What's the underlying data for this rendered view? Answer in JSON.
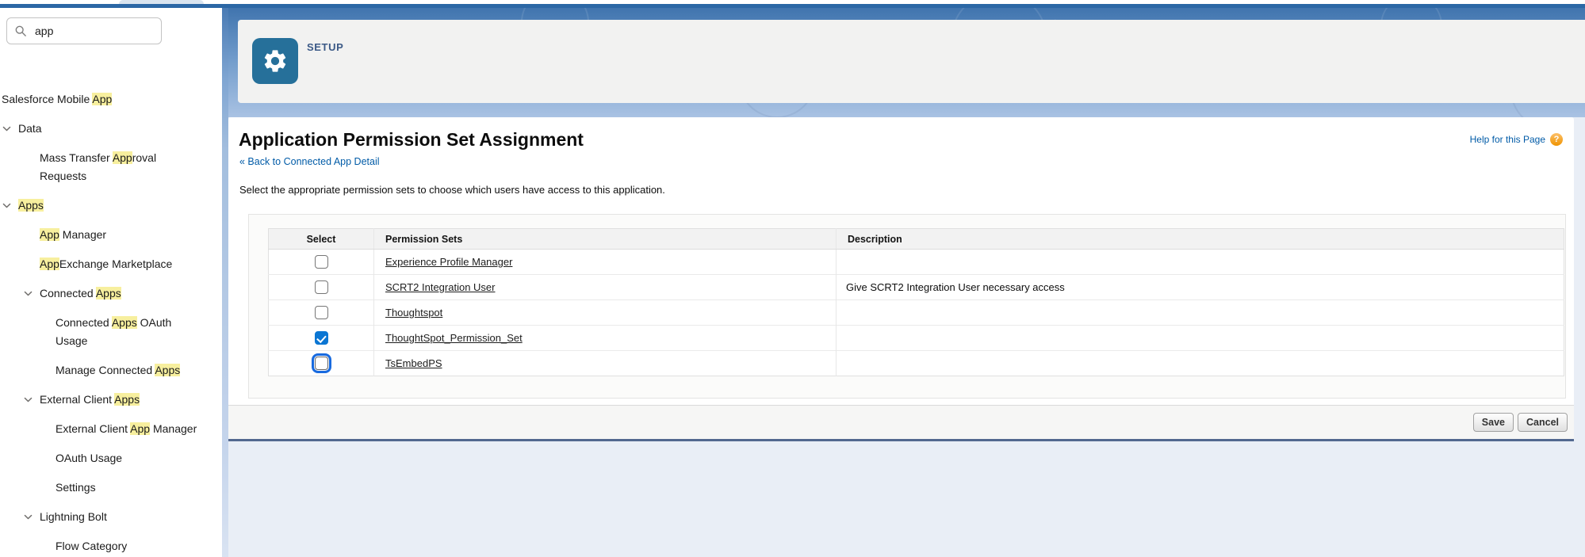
{
  "sidebar": {
    "search": {
      "value": "app",
      "icon": "search-icon"
    },
    "items": [
      {
        "id": "salesforce-mobile-app",
        "level": 0,
        "chevron": false,
        "lines": [
          [
            {
              "t": "Salesforce Mobile "
            },
            {
              "t": "App",
              "h": true
            }
          ]
        ]
      },
      {
        "id": "data",
        "level": 0,
        "chevron": true,
        "lines": [
          [
            {
              "t": "Data"
            }
          ]
        ]
      },
      {
        "id": "mass-transfer-approval-requests",
        "level": 1,
        "chevron": false,
        "lines": [
          [
            {
              "t": "Mass Transfer "
            },
            {
              "t": "App",
              "h": true
            },
            {
              "t": "roval"
            }
          ],
          [
            {
              "t": "Requests"
            }
          ]
        ]
      },
      {
        "id": "apps",
        "level": 0,
        "chevron": true,
        "lines": [
          [
            {
              "t": "Apps",
              "h": true
            }
          ]
        ]
      },
      {
        "id": "app-manager",
        "level": 1,
        "chevron": false,
        "lines": [
          [
            {
              "t": "App",
              "h": true
            },
            {
              "t": " Manager"
            }
          ]
        ]
      },
      {
        "id": "appexchange-marketplace",
        "level": 1,
        "chevron": false,
        "lines": [
          [
            {
              "t": "App",
              "h": true
            },
            {
              "t": "Exchange Marketplace"
            }
          ]
        ]
      },
      {
        "id": "connected-apps",
        "level": 1,
        "chevron": true,
        "lines": [
          [
            {
              "t": "Connected "
            },
            {
              "t": "Apps",
              "h": true
            }
          ]
        ]
      },
      {
        "id": "connected-apps-oauth-usage",
        "level": 2,
        "chevron": false,
        "lines": [
          [
            {
              "t": "Connected "
            },
            {
              "t": "Apps",
              "h": true
            },
            {
              "t": " OAuth"
            }
          ],
          [
            {
              "t": "Usage"
            }
          ]
        ]
      },
      {
        "id": "manage-connected-apps",
        "level": 2,
        "chevron": false,
        "lines": [
          [
            {
              "t": "Manage Connected "
            },
            {
              "t": "Apps",
              "h": true
            }
          ]
        ]
      },
      {
        "id": "external-client-apps",
        "level": 1,
        "chevron": true,
        "lines": [
          [
            {
              "t": "External Client "
            },
            {
              "t": "Apps",
              "h": true
            }
          ]
        ]
      },
      {
        "id": "external-client-app-manager",
        "level": 2,
        "chevron": false,
        "lines": [
          [
            {
              "t": "External Client "
            },
            {
              "t": "App",
              "h": true
            },
            {
              "t": " Manager"
            }
          ]
        ]
      },
      {
        "id": "oauth-usage",
        "level": 2,
        "chevron": false,
        "lines": [
          [
            {
              "t": "OAuth Usage"
            }
          ]
        ]
      },
      {
        "id": "settings",
        "level": 2,
        "chevron": false,
        "lines": [
          [
            {
              "t": "Settings"
            }
          ]
        ]
      },
      {
        "id": "lightning-bolt",
        "level": 1,
        "chevron": true,
        "lines": [
          [
            {
              "t": "Lightning Bolt"
            }
          ]
        ]
      },
      {
        "id": "flow-category",
        "level": 2,
        "chevron": false,
        "lines": [
          [
            {
              "t": "Flow Category"
            }
          ]
        ]
      }
    ]
  },
  "header": {
    "label": "SETUP",
    "icon": "gear-icon"
  },
  "page": {
    "title": "Application Permission Set Assignment",
    "help_link": "Help for this Page",
    "help_badge": "?",
    "back_link": "« Back to Connected App Detail",
    "description": "Select the appropriate permission sets to choose which users have access to this application.",
    "table": {
      "columns": [
        "Select",
        "Permission Sets",
        "Description"
      ],
      "rows": [
        {
          "name": "Experience Profile Manager",
          "description": "",
          "checked": false,
          "focused": false
        },
        {
          "name": "SCRT2 Integration User",
          "description": "Give SCRT2 Integration User necessary access",
          "checked": false,
          "focused": false
        },
        {
          "name": "Thoughtspot",
          "description": "",
          "checked": false,
          "focused": false
        },
        {
          "name": "ThoughtSpot_Permission_Set",
          "description": "",
          "checked": true,
          "focused": false
        },
        {
          "name": "TsEmbedPS",
          "description": "",
          "checked": false,
          "focused": true
        }
      ]
    },
    "buttons": {
      "save": "Save",
      "cancel": "Cancel"
    }
  },
  "colors": {
    "brand_blue": "#0b76d3",
    "link_blue": "#015ba7",
    "highlight_yellow": "#f7ef9e",
    "banner_blue": "#6f9aca",
    "tile_blue": "#26709a",
    "card_bottom_border": "#52688f"
  }
}
